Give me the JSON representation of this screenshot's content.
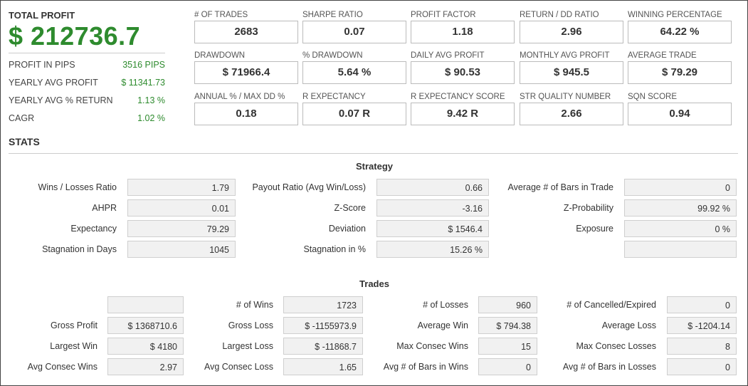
{
  "summary": {
    "total_profit_label": "TOTAL PROFIT",
    "total_profit_value": "$ 212736.7",
    "rows": [
      {
        "label": "PROFIT IN PIPS",
        "value": "3516 PIPS"
      },
      {
        "label": "YEARLY AVG PROFIT",
        "value": "$ 11341.73"
      },
      {
        "label": "YEARLY AVG % RETURN",
        "value": "1.13 %"
      },
      {
        "label": "CAGR",
        "value": "1.02 %"
      }
    ]
  },
  "metrics": [
    {
      "label": "# OF TRADES",
      "value": "2683"
    },
    {
      "label": "SHARPE RATIO",
      "value": "0.07"
    },
    {
      "label": "PROFIT FACTOR",
      "value": "1.18"
    },
    {
      "label": "RETURN / DD RATIO",
      "value": "2.96"
    },
    {
      "label": "WINNING PERCENTAGE",
      "value": "64.22 %"
    },
    {
      "label": "DRAWDOWN",
      "value": "$ 71966.4"
    },
    {
      "label": "% DRAWDOWN",
      "value": "5.64 %"
    },
    {
      "label": "DAILY AVG PROFIT",
      "value": "$ 90.53"
    },
    {
      "label": "MONTHLY AVG PROFIT",
      "value": "$ 945.5"
    },
    {
      "label": "AVERAGE TRADE",
      "value": "$ 79.29"
    },
    {
      "label": "ANNUAL % / MAX DD %",
      "value": "0.18"
    },
    {
      "label": "R EXPECTANCY",
      "value": "0.07 R"
    },
    {
      "label": "R EXPECTANCY SCORE",
      "value": "9.42 R"
    },
    {
      "label": "STR QUALITY NUMBER",
      "value": "2.66"
    },
    {
      "label": "SQN SCORE",
      "value": "0.94"
    }
  ],
  "stats_title": "STATS",
  "strategy": {
    "title": "Strategy",
    "rows": [
      [
        {
          "label": "Wins / Losses Ratio",
          "value": "1.79"
        },
        {
          "label": "Payout Ratio (Avg Win/Loss)",
          "value": "0.66"
        },
        {
          "label": "Average # of Bars in Trade",
          "value": "0"
        }
      ],
      [
        {
          "label": "AHPR",
          "value": "0.01"
        },
        {
          "label": "Z-Score",
          "value": "-3.16"
        },
        {
          "label": "Z-Probability",
          "value": "99.92 %"
        }
      ],
      [
        {
          "label": "Expectancy",
          "value": "79.29"
        },
        {
          "label": "Deviation",
          "value": "$ 1546.4"
        },
        {
          "label": "Exposure",
          "value": "0 %"
        }
      ],
      [
        {
          "label": "Stagnation in Days",
          "value": "1045"
        },
        {
          "label": "Stagnation in %",
          "value": "15.26 %"
        },
        {
          "label": "",
          "value": ""
        }
      ]
    ]
  },
  "trades": {
    "title": "Trades",
    "rows": [
      [
        {
          "label": "",
          "value": ""
        },
        {
          "label": "# of Wins",
          "value": "1723"
        },
        {
          "label": "# of Losses",
          "value": "960"
        },
        {
          "label": "# of Cancelled/Expired",
          "value": "0"
        }
      ],
      [
        {
          "label": "Gross Profit",
          "value": "$ 1368710.6"
        },
        {
          "label": "Gross Loss",
          "value": "$ -1155973.9"
        },
        {
          "label": "Average Win",
          "value": "$ 794.38"
        },
        {
          "label": "Average Loss",
          "value": "$ -1204.14"
        }
      ],
      [
        {
          "label": "Largest Win",
          "value": "$ 4180"
        },
        {
          "label": "Largest Loss",
          "value": "$ -11868.7"
        },
        {
          "label": "Max Consec Wins",
          "value": "15"
        },
        {
          "label": "Max Consec Losses",
          "value": "8"
        }
      ],
      [
        {
          "label": "Avg Consec Wins",
          "value": "2.97"
        },
        {
          "label": "Avg Consec Loss",
          "value": "1.65"
        },
        {
          "label": "Avg # of Bars in Wins",
          "value": "0"
        },
        {
          "label": "Avg # of Bars in Losses",
          "value": "0"
        }
      ]
    ]
  }
}
